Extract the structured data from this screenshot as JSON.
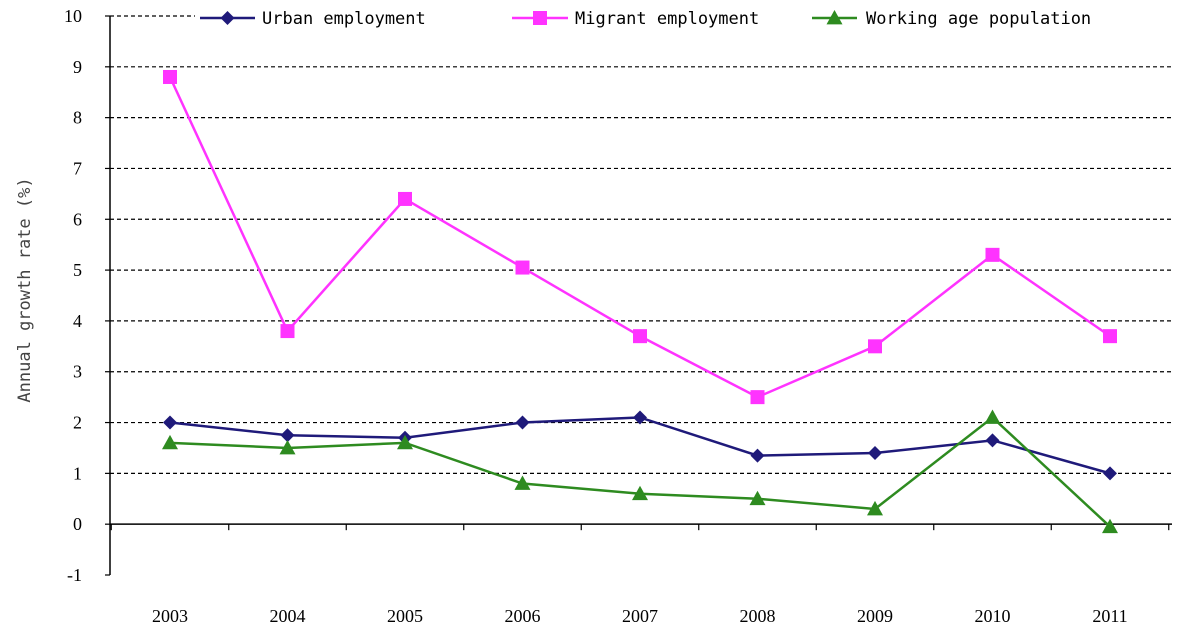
{
  "chart_data": {
    "type": "line",
    "title": "",
    "xlabel": "",
    "ylabel": "Annual growth rate (%)",
    "categories": [
      "2003",
      "2004",
      "2005",
      "2006",
      "2007",
      "2008",
      "2009",
      "2010",
      "2011"
    ],
    "ylim": [
      -1,
      10
    ],
    "yticks": [
      "-1",
      "0",
      "1",
      "2",
      "3",
      "4",
      "5",
      "6",
      "7",
      "8",
      "9",
      "10"
    ],
    "grid": "horizontal dashed",
    "legend_position": "top",
    "series": [
      {
        "name": "Urban employment",
        "color": "#1f1a7a",
        "marker": "diamond",
        "values": [
          2.0,
          1.75,
          1.7,
          2.0,
          2.1,
          1.35,
          1.4,
          1.65,
          1.0
        ]
      },
      {
        "name": "Migrant employment",
        "color": "#ff33ff",
        "marker": "square",
        "values": [
          8.8,
          3.8,
          6.4,
          5.05,
          3.7,
          2.5,
          3.5,
          5.3,
          3.7
        ]
      },
      {
        "name": "Working age population",
        "color": "#2e8b20",
        "marker": "triangle",
        "values": [
          1.6,
          1.5,
          1.6,
          0.8,
          0.6,
          0.5,
          0.3,
          2.1,
          -0.05
        ]
      }
    ]
  }
}
